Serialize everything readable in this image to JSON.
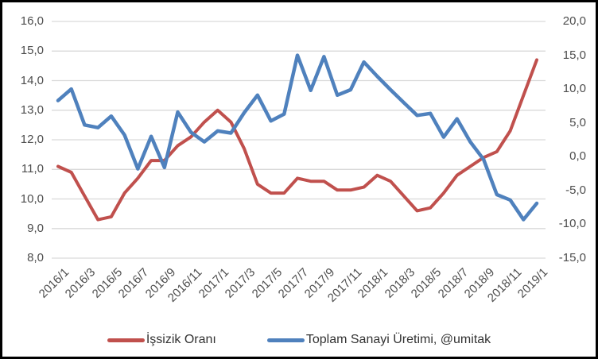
{
  "chart_data": {
    "type": "line",
    "title": "",
    "grid": true,
    "legend_position": "bottom",
    "decimal_separator": ",",
    "background_color": "#ffffff",
    "gridline_color": "#d9d9d9",
    "axis_label_color": "#4d4d4d",
    "categories": [
      "2016/1",
      "2016/2",
      "2016/3",
      "2016/4",
      "2016/5",
      "2016/6",
      "2016/7",
      "2016/8",
      "2016/9",
      "2016/10",
      "2016/11",
      "2016/12",
      "2017/1",
      "2017/2",
      "2017/3",
      "2017/4",
      "2017/5",
      "2017/6",
      "2017/7",
      "2017/8",
      "2017/9",
      "2017/10",
      "2017/11",
      "2017/12",
      "2018/1",
      "2018/2",
      "2018/3",
      "2018/4",
      "2018/5",
      "2018/6",
      "2018/7",
      "2018/8",
      "2018/9",
      "2018/10",
      "2018/11",
      "2018/12",
      "2019/1"
    ],
    "x_tick_labels": [
      "2016/1",
      "2016/3",
      "2016/5",
      "2016/7",
      "2016/9",
      "2016/11",
      "2017/1",
      "2017/3",
      "2017/5",
      "2017/7",
      "2017/9",
      "2017/11",
      "2018/1",
      "2018/3",
      "2018/5",
      "2018/7",
      "2018/9",
      "2018/11",
      "2019/1"
    ],
    "left_axis": {
      "min": 8.0,
      "max": 16.0,
      "step": 1.0,
      "tick_labels": [
        "16,0",
        "15,0",
        "14,0",
        "13,0",
        "12,0",
        "11,0",
        "10,0",
        "9,0",
        "8,0"
      ]
    },
    "right_axis": {
      "min": -15.0,
      "max": 20.0,
      "step": 5.0,
      "tick_labels": [
        "20,0",
        "15,0",
        "10,0",
        "5,0",
        "0,0",
        "-5,0",
        "-10,0",
        "-15,0"
      ]
    },
    "series": [
      {
        "name": "İşsizik Oranı",
        "axis": "left",
        "color": "#c0504d",
        "stroke_width": 4,
        "values": [
          11.1,
          10.9,
          10.1,
          9.3,
          9.4,
          10.2,
          10.7,
          11.3,
          11.3,
          11.8,
          12.1,
          12.6,
          13.0,
          12.6,
          11.7,
          10.5,
          10.2,
          10.2,
          10.7,
          10.6,
          10.6,
          10.3,
          10.3,
          10.4,
          10.8,
          10.6,
          10.1,
          9.6,
          9.7,
          10.2,
          10.8,
          11.1,
          11.4,
          11.6,
          12.3,
          13.5,
          14.7
        ]
      },
      {
        "name": "Toplam Sanayi Üretimi, @umitak",
        "axis": "right",
        "color": "#4f81bd",
        "stroke_width": 4.5,
        "values": [
          8.3,
          10.0,
          4.7,
          4.3,
          6.0,
          3.2,
          -1.8,
          3.0,
          -1.6,
          6.6,
          3.6,
          2.2,
          3.8,
          3.5,
          6.5,
          9.1,
          5.3,
          6.3,
          15.0,
          9.8,
          14.8,
          9.1,
          9.9,
          14.0,
          11.9,
          9.9,
          8.0,
          6.1,
          6.4,
          2.9,
          5.6,
          2.2,
          -0.4,
          -5.6,
          -6.4,
          -9.3,
          -6.9
        ]
      }
    ]
  },
  "legend": {
    "items": [
      {
        "label": "İşsizik Oranı"
      },
      {
        "label": "Toplam Sanayi Üretimi, @umitak"
      }
    ]
  }
}
